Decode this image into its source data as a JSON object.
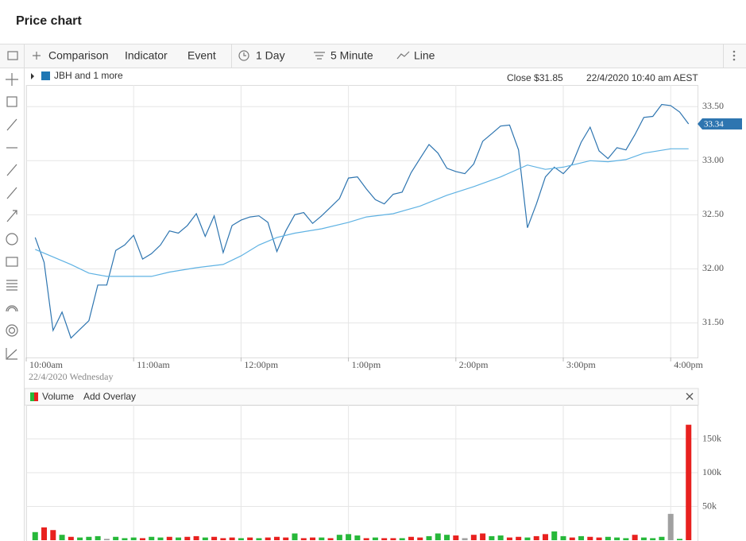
{
  "header": {
    "title": "Price chart"
  },
  "toolbar": {
    "items": [
      "Comparison",
      "Indicator",
      "Event",
      "1 Day",
      "5 Minute",
      "Line"
    ]
  },
  "info": {
    "legend": "JBH and 1 more",
    "close": "Close $31.85",
    "timestamp": "22/4/2020 10:40 am AEST"
  },
  "volume_panel": {
    "add_overlay": "Add Overlay"
  },
  "chart_data": [
    {
      "type": "line",
      "xlim": [
        "10:00",
        "16:15"
      ],
      "xticks": [
        {
          "value": "10:00",
          "label": "10:00am"
        },
        {
          "value": "11:00",
          "label": "11:00am"
        },
        {
          "value": "12:00",
          "label": "12:00pm"
        },
        {
          "value": "13:00",
          "label": "1:00pm"
        },
        {
          "value": "14:00",
          "label": "2:00pm"
        },
        {
          "value": "15:00",
          "label": "3:00pm"
        },
        {
          "value": "16:00",
          "label": "4:00pm"
        }
      ],
      "x_sublabel": "22/4/2020 Wednesday",
      "ylim": [
        31.18,
        33.7
      ],
      "yticks": [
        {
          "value": 31.5,
          "label": "31.50"
        },
        {
          "value": 32,
          "label": "32.00"
        },
        {
          "value": 32.5,
          "label": "32.50"
        },
        {
          "value": 33,
          "label": "33.00"
        },
        {
          "value": 33.5,
          "label": "33.50"
        }
      ],
      "grid": true,
      "series": [
        {
          "color": "#2e75b0",
          "x": [
            "10:05",
            "10:10",
            "10:15",
            "10:20",
            "10:25",
            "10:30",
            "10:35",
            "10:40",
            "10:45",
            "10:50",
            "10:55",
            "11:00",
            "11:05",
            "11:10",
            "11:15",
            "11:20",
            "11:25",
            "11:30",
            "11:35",
            "11:40",
            "11:45",
            "11:50",
            "11:55",
            "12:00",
            "12:05",
            "12:10",
            "12:15",
            "12:20",
            "12:25",
            "12:30",
            "12:35",
            "12:40",
            "12:45",
            "12:50",
            "12:55",
            "13:00",
            "13:05",
            "13:10",
            "13:15",
            "13:20",
            "13:25",
            "13:30",
            "13:35",
            "13:40",
            "13:45",
            "13:50",
            "13:55",
            "14:00",
            "14:05",
            "14:10",
            "14:15",
            "14:20",
            "14:25",
            "14:30",
            "14:35",
            "14:40",
            "14:45",
            "14:50",
            "14:55",
            "15:00",
            "15:05",
            "15:10",
            "15:15",
            "15:20",
            "15:25",
            "15:30",
            "15:35",
            "15:40",
            "15:45",
            "15:50",
            "15:55",
            "16:00",
            "16:05",
            "16:10"
          ],
          "values": [
            32.29,
            32.06,
            31.43,
            31.6,
            31.36,
            31.44,
            31.52,
            31.85,
            31.85,
            32.17,
            32.22,
            32.31,
            32.09,
            32.14,
            32.22,
            32.35,
            32.33,
            32.4,
            32.51,
            32.3,
            32.49,
            32.15,
            32.4,
            32.45,
            32.48,
            32.49,
            32.43,
            32.16,
            32.35,
            32.5,
            32.52,
            32.42,
            32.49,
            32.57,
            32.65,
            32.84,
            32.85,
            32.74,
            32.64,
            32.6,
            32.69,
            32.71,
            32.89,
            33.02,
            33.15,
            33.07,
            32.93,
            32.9,
            32.88,
            32.97,
            33.18,
            33.25,
            33.32,
            33.33,
            33.1,
            32.38,
            32.6,
            32.85,
            32.94,
            32.88,
            32.97,
            33.17,
            33.31,
            33.09,
            33.02,
            33.12,
            33.1,
            33.24,
            33.4,
            33.41,
            33.52,
            33.51,
            33.45,
            33.34
          ]
        },
        {
          "color": "#5fb2e3",
          "x": [
            "10:05",
            "10:15",
            "10:25",
            "10:35",
            "10:45",
            "11:00",
            "11:10",
            "11:20",
            "11:35",
            "11:50",
            "12:00",
            "12:10",
            "12:20",
            "12:30",
            "12:45",
            "13:00",
            "13:10",
            "13:25",
            "13:40",
            "13:55",
            "14:10",
            "14:25",
            "14:40",
            "14:50",
            "15:00",
            "15:15",
            "15:25",
            "15:35",
            "15:45",
            "16:00",
            "16:10"
          ],
          "values": [
            32.18,
            32.11,
            32.04,
            31.96,
            31.93,
            31.93,
            31.93,
            31.97,
            32.01,
            32.04,
            32.12,
            32.22,
            32.29,
            32.33,
            32.37,
            32.43,
            32.48,
            32.51,
            32.58,
            32.68,
            32.76,
            32.85,
            32.96,
            32.92,
            32.94,
            33.0,
            32.99,
            33.01,
            33.07,
            33.11,
            33.11
          ]
        }
      ]
    },
    {
      "type": "bar",
      "xlim": [
        "10:00",
        "16:15"
      ],
      "xticks": [
        "10:00",
        "11:00",
        "12:00",
        "13:00",
        "14:00",
        "15:00",
        "16:00"
      ],
      "ylim": [
        0,
        200000
      ],
      "yticks": [
        {
          "value": 50000,
          "label": "50k"
        },
        {
          "value": 100000,
          "label": "100k"
        },
        {
          "value": 150000,
          "label": "150k"
        }
      ],
      "grid": true,
      "x": [
        "10:05",
        "10:10",
        "10:15",
        "10:20",
        "10:25",
        "10:30",
        "10:35",
        "10:40",
        "10:45",
        "10:50",
        "10:55",
        "11:00",
        "11:05",
        "11:10",
        "11:15",
        "11:20",
        "11:25",
        "11:30",
        "11:35",
        "11:40",
        "11:45",
        "11:50",
        "11:55",
        "12:00",
        "12:05",
        "12:10",
        "12:15",
        "12:20",
        "12:25",
        "12:30",
        "12:35",
        "12:40",
        "12:45",
        "12:50",
        "12:55",
        "13:00",
        "13:05",
        "13:10",
        "13:15",
        "13:20",
        "13:25",
        "13:30",
        "13:35",
        "13:40",
        "13:45",
        "13:50",
        "13:55",
        "14:00",
        "14:05",
        "14:10",
        "14:15",
        "14:20",
        "14:25",
        "14:30",
        "14:35",
        "14:40",
        "14:45",
        "14:50",
        "14:55",
        "15:00",
        "15:05",
        "15:10",
        "15:15",
        "15:20",
        "15:25",
        "15:30",
        "15:35",
        "15:40",
        "15:45",
        "15:50",
        "15:55",
        "16:00",
        "16:05",
        "16:10"
      ],
      "series": [
        {
          "name": "Volume",
          "legend_colors": [
            "#e8211f",
            "#27b83a"
          ],
          "values": [
            12000,
            19000,
            15000,
            8000,
            5000,
            4000,
            5000,
            6000,
            2000,
            5000,
            3000,
            4000,
            3000,
            5000,
            4000,
            5000,
            4000,
            5000,
            6000,
            4000,
            5000,
            3000,
            4000,
            3000,
            4000,
            3000,
            4000,
            5000,
            4000,
            10000,
            3000,
            4000,
            4000,
            3000,
            8000,
            9000,
            7000,
            3000,
            4000,
            3000,
            3000,
            3000,
            5000,
            4000,
            6000,
            10000,
            8000,
            7000,
            3000,
            8000,
            10000,
            6000,
            7000,
            4000,
            5000,
            4000,
            6000,
            9000,
            13000,
            6000,
            4000,
            6000,
            5000,
            4000,
            5000,
            4000,
            3000,
            8000,
            4000,
            3000,
            5000,
            39000,
            2000,
            171000
          ],
          "colors": [
            "#27b83a",
            "#e8211f",
            "#e8211f",
            "#27b83a",
            "#e8211f",
            "#27b83a",
            "#27b83a",
            "#27b83a",
            "#a0a0a0",
            "#27b83a",
            "#27b83a",
            "#27b83a",
            "#e8211f",
            "#27b83a",
            "#27b83a",
            "#e8211f",
            "#27b83a",
            "#e8211f",
            "#e8211f",
            "#27b83a",
            "#e8211f",
            "#e8211f",
            "#e8211f",
            "#27b83a",
            "#e8211f",
            "#27b83a",
            "#e8211f",
            "#e8211f",
            "#e8211f",
            "#27b83a",
            "#e8211f",
            "#e8211f",
            "#27b83a",
            "#e8211f",
            "#27b83a",
            "#27b83a",
            "#27b83a",
            "#e8211f",
            "#27b83a",
            "#e8211f",
            "#e8211f",
            "#27b83a",
            "#e8211f",
            "#e8211f",
            "#27b83a",
            "#27b83a",
            "#27b83a",
            "#e8211f",
            "#a0a0a0",
            "#e8211f",
            "#e8211f",
            "#27b83a",
            "#27b83a",
            "#e8211f",
            "#e8211f",
            "#27b83a",
            "#e8211f",
            "#e8211f",
            "#27b83a",
            "#27b83a",
            "#e8211f",
            "#27b83a",
            "#e8211f",
            "#e8211f",
            "#27b83a",
            "#27b83a",
            "#27b83a",
            "#e8211f",
            "#27b83a",
            "#27b83a",
            "#27b83a",
            "#a0a0a0",
            "#27b83a",
            "#e8211f"
          ]
        }
      ]
    }
  ]
}
